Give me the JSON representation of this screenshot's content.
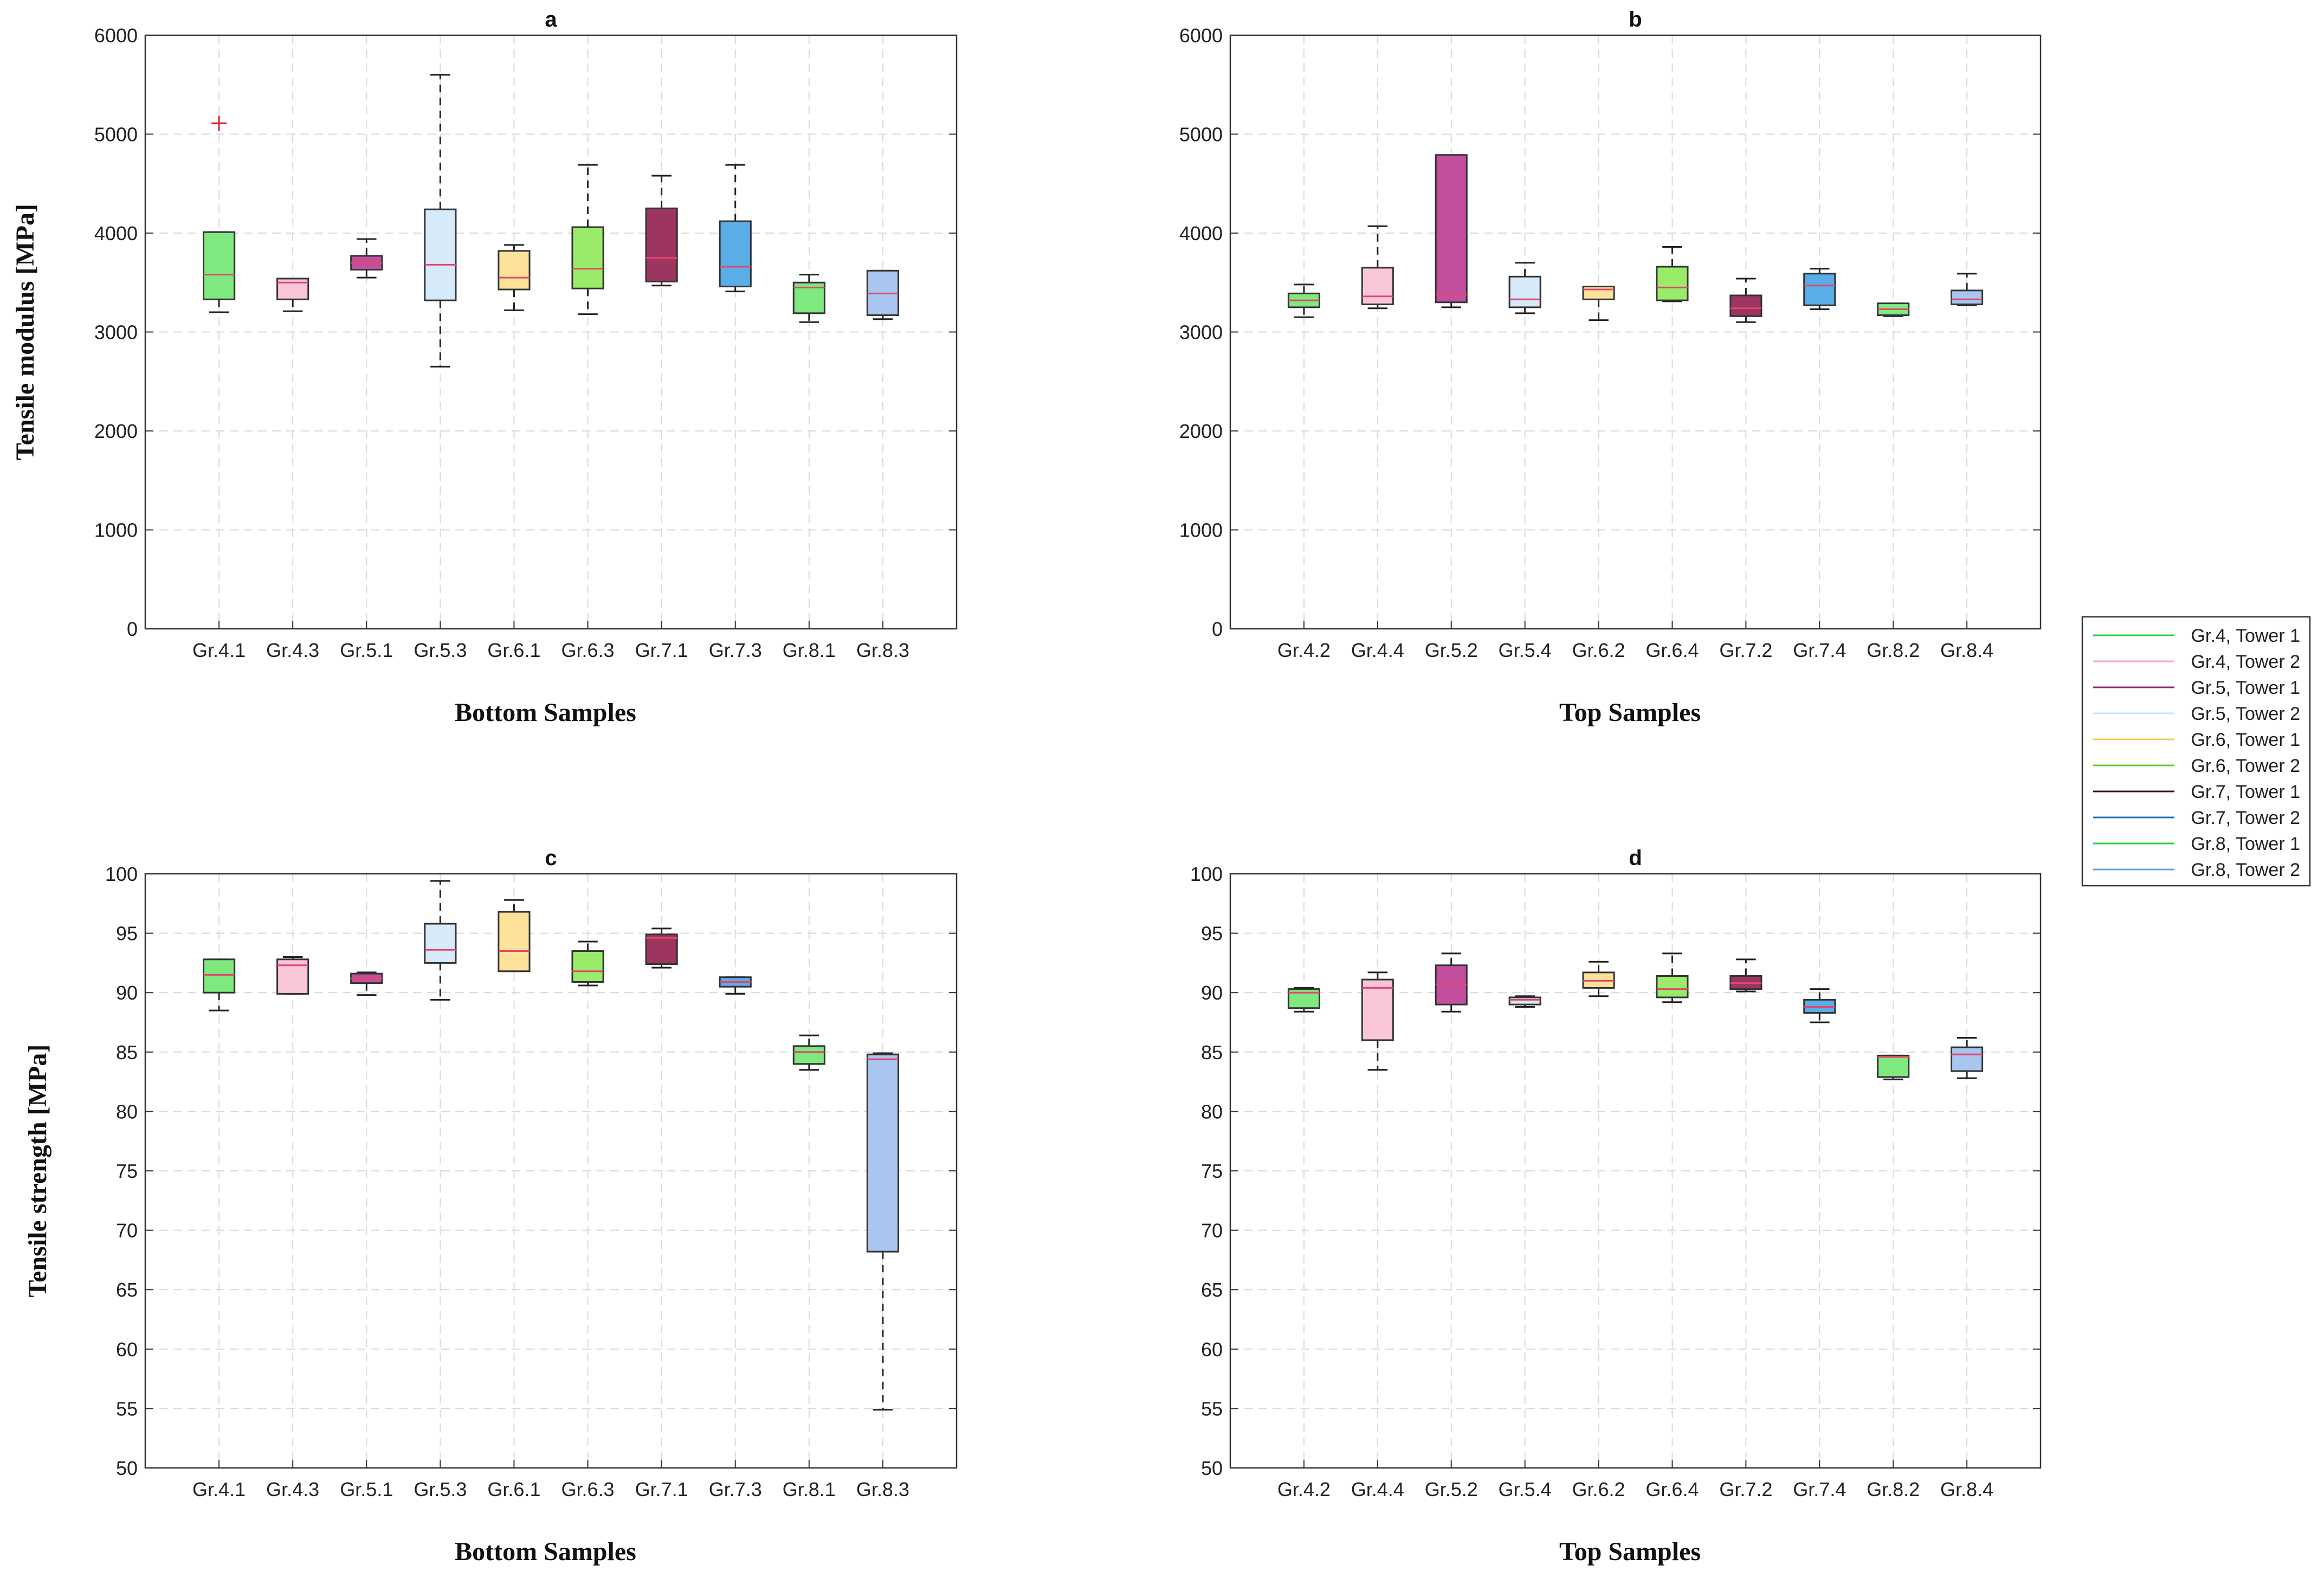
{
  "chart_data": [
    {
      "type": "box",
      "title": "a",
      "xlabel": "Bottom Samples",
      "ylabel": "Tensile modulus [MPa]",
      "ylim": [
        0,
        6000
      ],
      "yticks": [
        0,
        1000,
        2000,
        3000,
        4000,
        5000,
        6000
      ],
      "grid": true,
      "categories": [
        "Gr.4.1",
        "Gr.4.3",
        "Gr.5.1",
        "Gr.5.3",
        "Gr.6.1",
        "Gr.6.3",
        "Gr.7.1",
        "Gr.7.3",
        "Gr.8.1",
        "Gr.8.3"
      ],
      "boxes": [
        {
          "min": 3200,
          "q1": 3330,
          "median": 3580,
          "q3": 4010,
          "max": 4010,
          "outliers": [
            5110
          ],
          "color": "#7fe87f"
        },
        {
          "min": 3210,
          "q1": 3330,
          "median": 3500,
          "q3": 3540,
          "max": 3540,
          "outliers": [],
          "color": "#f8c6d8"
        },
        {
          "min": 3550,
          "q1": 3630,
          "median": 3700,
          "q3": 3770,
          "max": 3940,
          "outliers": [],
          "color": "#c2509e"
        },
        {
          "min": 2650,
          "q1": 3320,
          "median": 3680,
          "q3": 4240,
          "max": 5600,
          "outliers": [],
          "color": "#d6eafa"
        },
        {
          "min": 3220,
          "q1": 3430,
          "median": 3550,
          "q3": 3820,
          "max": 3880,
          "outliers": [],
          "color": "#fde39a"
        },
        {
          "min": 3180,
          "q1": 3440,
          "median": 3640,
          "q3": 4060,
          "max": 4690,
          "outliers": [],
          "color": "#9aeb6a"
        },
        {
          "min": 3470,
          "q1": 3510,
          "median": 3750,
          "q3": 4250,
          "max": 4580,
          "outliers": [],
          "color": "#9c3560"
        },
        {
          "min": 3410,
          "q1": 3460,
          "median": 3660,
          "q3": 4120,
          "max": 4690,
          "outliers": [],
          "color": "#5aaee8"
        },
        {
          "min": 3100,
          "q1": 3190,
          "median": 3450,
          "q3": 3500,
          "max": 3580,
          "outliers": [],
          "color": "#7fe87f"
        },
        {
          "min": 3130,
          "q1": 3170,
          "median": 3390,
          "q3": 3620,
          "max": 3620,
          "outliers": [],
          "color": "#a8c6ef"
        }
      ]
    },
    {
      "type": "box",
      "title": "b",
      "xlabel": "Top Samples",
      "ylabel": "",
      "ylim": [
        0,
        6000
      ],
      "yticks": [
        0,
        1000,
        2000,
        3000,
        4000,
        5000,
        6000
      ],
      "grid": true,
      "categories": [
        "Gr.4.2",
        "Gr.4.4",
        "Gr.5.2",
        "Gr.5.4",
        "Gr.6.2",
        "Gr.6.4",
        "Gr.7.2",
        "Gr.7.4",
        "Gr.8.2",
        "Gr.8.4"
      ],
      "boxes": [
        {
          "min": 3150,
          "q1": 3250,
          "median": 3320,
          "q3": 3390,
          "max": 3480,
          "outliers": [],
          "color": "#7fe87f"
        },
        {
          "min": 3240,
          "q1": 3280,
          "median": 3360,
          "q3": 3650,
          "max": 4070,
          "outliers": [],
          "color": "#f8c6d8"
        },
        {
          "min": 3250,
          "q1": 3300,
          "median": 3380,
          "q3": 4790,
          "max": 4790,
          "outliers": [],
          "color": "#c2509e"
        },
        {
          "min": 3190,
          "q1": 3250,
          "median": 3330,
          "q3": 3560,
          "max": 3700,
          "outliers": [],
          "color": "#d6eafa"
        },
        {
          "min": 3120,
          "q1": 3330,
          "median": 3430,
          "q3": 3460,
          "max": 3460,
          "outliers": [],
          "color": "#fde39a"
        },
        {
          "min": 3310,
          "q1": 3320,
          "median": 3450,
          "q3": 3660,
          "max": 3860,
          "outliers": [],
          "color": "#9aeb6a"
        },
        {
          "min": 3100,
          "q1": 3160,
          "median": 3240,
          "q3": 3370,
          "max": 3540,
          "outliers": [],
          "color": "#9c3560"
        },
        {
          "min": 3230,
          "q1": 3270,
          "median": 3470,
          "q3": 3590,
          "max": 3640,
          "outliers": [],
          "color": "#5aaee8"
        },
        {
          "min": 3160,
          "q1": 3170,
          "median": 3230,
          "q3": 3290,
          "max": 3290,
          "outliers": [],
          "color": "#7fe87f"
        },
        {
          "min": 3270,
          "q1": 3280,
          "median": 3330,
          "q3": 3420,
          "max": 3590,
          "outliers": [],
          "color": "#a8c6ef"
        }
      ]
    },
    {
      "type": "box",
      "title": "c",
      "xlabel": "Bottom Samples",
      "ylabel": "Tensile strength [MPa]",
      "ylim": [
        50,
        100
      ],
      "yticks": [
        50,
        55,
        60,
        65,
        70,
        75,
        80,
        85,
        90,
        95,
        100
      ],
      "grid": true,
      "categories": [
        "Gr.4.1",
        "Gr.4.3",
        "Gr.5.1",
        "Gr.5.3",
        "Gr.6.1",
        "Gr.6.3",
        "Gr.7.1",
        "Gr.7.3",
        "Gr.8.1",
        "Gr.8.3"
      ],
      "boxes": [
        {
          "min": 88.5,
          "q1": 90.0,
          "median": 91.5,
          "q3": 92.8,
          "max": 92.8,
          "outliers": [],
          "color": "#7fe87f"
        },
        {
          "min": 89.9,
          "q1": 89.9,
          "median": 92.3,
          "q3": 92.8,
          "max": 93.0,
          "outliers": [],
          "color": "#f8c6d8"
        },
        {
          "min": 89.8,
          "q1": 90.8,
          "median": 91.2,
          "q3": 91.6,
          "max": 91.7,
          "outliers": [],
          "color": "#c2509e"
        },
        {
          "min": 89.4,
          "q1": 92.5,
          "median": 93.6,
          "q3": 95.8,
          "max": 99.4,
          "outliers": [],
          "color": "#d6eafa"
        },
        {
          "min": 91.8,
          "q1": 91.8,
          "median": 93.5,
          "q3": 96.8,
          "max": 97.8,
          "outliers": [],
          "color": "#fde39a"
        },
        {
          "min": 90.6,
          "q1": 90.9,
          "median": 91.8,
          "q3": 93.5,
          "max": 94.3,
          "outliers": [],
          "color": "#9aeb6a"
        },
        {
          "min": 92.1,
          "q1": 92.4,
          "median": 94.6,
          "q3": 94.9,
          "max": 95.4,
          "outliers": [],
          "color": "#9c3560"
        },
        {
          "min": 89.9,
          "q1": 90.5,
          "median": 90.9,
          "q3": 91.3,
          "max": 91.3,
          "outliers": [],
          "color": "#5aaee8"
        },
        {
          "min": 83.5,
          "q1": 84.0,
          "median": 85.0,
          "q3": 85.5,
          "max": 86.4,
          "outliers": [],
          "color": "#7fe87f"
        },
        {
          "min": 54.9,
          "q1": 68.2,
          "median": 84.4,
          "q3": 84.8,
          "max": 84.9,
          "outliers": [],
          "color": "#a8c6ef"
        }
      ]
    },
    {
      "type": "box",
      "title": "d",
      "xlabel": "Top Samples",
      "ylabel": "",
      "ylim": [
        50,
        100
      ],
      "yticks": [
        50,
        55,
        60,
        65,
        70,
        75,
        80,
        85,
        90,
        95,
        100
      ],
      "grid": true,
      "categories": [
        "Gr.4.2",
        "Gr.4.4",
        "Gr.5.2",
        "Gr.5.4",
        "Gr.6.2",
        "Gr.6.4",
        "Gr.7.2",
        "Gr.7.4",
        "Gr.8.2",
        "Gr.8.4"
      ],
      "boxes": [
        {
          "min": 88.4,
          "q1": 88.7,
          "median": 90.0,
          "q3": 90.3,
          "max": 90.4,
          "outliers": [],
          "color": "#7fe87f"
        },
        {
          "min": 83.5,
          "q1": 86.0,
          "median": 90.4,
          "q3": 91.1,
          "max": 91.7,
          "outliers": [],
          "color": "#f8c6d8"
        },
        {
          "min": 88.4,
          "q1": 89.0,
          "median": 90.7,
          "q3": 92.3,
          "max": 93.3,
          "outliers": [],
          "color": "#c2509e"
        },
        {
          "min": 88.8,
          "q1": 89.0,
          "median": 89.4,
          "q3": 89.6,
          "max": 89.7,
          "outliers": [],
          "color": "#d6eafa"
        },
        {
          "min": 89.7,
          "q1": 90.4,
          "median": 91.0,
          "q3": 91.7,
          "max": 92.6,
          "outliers": [],
          "color": "#fde39a"
        },
        {
          "min": 89.2,
          "q1": 89.6,
          "median": 90.3,
          "q3": 91.4,
          "max": 93.3,
          "outliers": [],
          "color": "#9aeb6a"
        },
        {
          "min": 90.1,
          "q1": 90.3,
          "median": 90.8,
          "q3": 91.4,
          "max": 92.8,
          "outliers": [],
          "color": "#9c3560"
        },
        {
          "min": 87.5,
          "q1": 88.3,
          "median": 88.8,
          "q3": 89.4,
          "max": 90.3,
          "outliers": [],
          "color": "#5aaee8"
        },
        {
          "min": 82.7,
          "q1": 82.9,
          "median": 84.6,
          "q3": 84.7,
          "max": 84.7,
          "outliers": [],
          "color": "#7fe87f"
        },
        {
          "min": 82.8,
          "q1": 83.4,
          "median": 84.8,
          "q3": 85.4,
          "max": 86.2,
          "outliers": [],
          "color": "#a8c6ef"
        }
      ]
    }
  ],
  "legend": {
    "position": "right",
    "entries": [
      {
        "label": "Gr.4, Tower 1",
        "color": "#2ecc40"
      },
      {
        "label": "Gr.4, Tower 2",
        "color": "#f7a8c0"
      },
      {
        "label": "Gr.5, Tower 1",
        "color": "#8b2a6a"
      },
      {
        "label": "Gr.5, Tower 2",
        "color": "#c9e2f6"
      },
      {
        "label": "Gr.6, Tower 1",
        "color": "#f5c860"
      },
      {
        "label": "Gr.6, Tower 2",
        "color": "#66cc33"
      },
      {
        "label": "Gr.7, Tower 1",
        "color": "#3a1020"
      },
      {
        "label": "Gr.7, Tower 2",
        "color": "#1f6fb5"
      },
      {
        "label": "Gr.8, Tower 1",
        "color": "#2ecc40"
      },
      {
        "label": "Gr.8, Tower 2",
        "color": "#6b9fd8"
      }
    ]
  }
}
